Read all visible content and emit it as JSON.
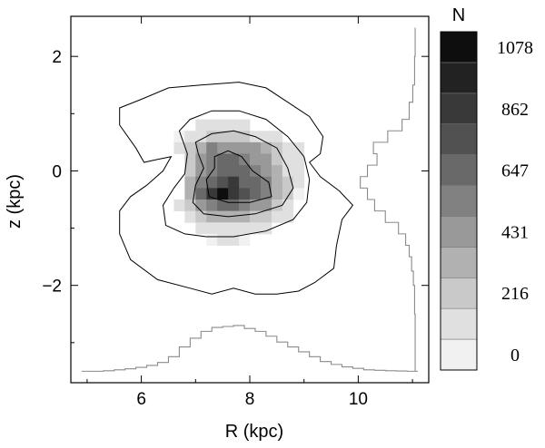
{
  "chart_data": {
    "type": "heatmap",
    "title": "",
    "xlabel": "R (kpc)",
    "ylabel": "z (kpc)",
    "xlim": [
      4.7,
      11.3
    ],
    "ylim": [
      -3.7,
      2.7
    ],
    "xticks": [
      6,
      8,
      10
    ],
    "xtick_labels": [
      "6",
      "8",
      "10"
    ],
    "yticks": [
      2,
      0,
      -2
    ],
    "ytick_labels": [
      "2",
      "0",
      "−2"
    ],
    "grid": false,
    "colorbar": {
      "title": "N",
      "min": 0,
      "max": 1078,
      "levels": 10,
      "tick_values": [
        1078,
        862,
        647,
        431,
        216,
        0
      ],
      "tick_labels": [
        "1078",
        "862",
        "647",
        "431",
        "216",
        "0"
      ],
      "colors": [
        "#f1f1f1",
        "#e0e0e0",
        "#c9c9c9",
        "#b1b1b1",
        "#999999",
        "#818181",
        "#696969",
        "#515151",
        "#393939",
        "#222222",
        "#0e0e0e"
      ]
    },
    "cells": [
      {
        "r": 7.1,
        "z": 0.8,
        "n": 60
      },
      {
        "r": 7.3,
        "z": 0.8,
        "n": 90
      },
      {
        "r": 7.5,
        "z": 0.8,
        "n": 90
      },
      {
        "r": 7.7,
        "z": 0.8,
        "n": 80
      },
      {
        "r": 7.9,
        "z": 0.8,
        "n": 60
      },
      {
        "r": 6.7,
        "z": 0.6,
        "n": 40
      },
      {
        "r": 6.9,
        "z": 0.6,
        "n": 100
      },
      {
        "r": 7.1,
        "z": 0.6,
        "n": 150
      },
      {
        "r": 7.3,
        "z": 0.6,
        "n": 250
      },
      {
        "r": 7.5,
        "z": 0.6,
        "n": 230
      },
      {
        "r": 7.7,
        "z": 0.6,
        "n": 220
      },
      {
        "r": 7.9,
        "z": 0.6,
        "n": 200
      },
      {
        "r": 8.1,
        "z": 0.6,
        "n": 150
      },
      {
        "r": 8.3,
        "z": 0.6,
        "n": 120
      },
      {
        "r": 8.5,
        "z": 0.6,
        "n": 70
      },
      {
        "r": 6.7,
        "z": 0.4,
        "n": 60
      },
      {
        "r": 6.9,
        "z": 0.4,
        "n": 180
      },
      {
        "r": 7.1,
        "z": 0.4,
        "n": 330
      },
      {
        "r": 7.3,
        "z": 0.4,
        "n": 520
      },
      {
        "r": 7.5,
        "z": 0.4,
        "n": 450
      },
      {
        "r": 7.7,
        "z": 0.4,
        "n": 420
      },
      {
        "r": 7.9,
        "z": 0.4,
        "n": 480
      },
      {
        "r": 8.1,
        "z": 0.4,
        "n": 380
      },
      {
        "r": 8.3,
        "z": 0.4,
        "n": 330
      },
      {
        "r": 8.5,
        "z": 0.4,
        "n": 200
      },
      {
        "r": 8.7,
        "z": 0.4,
        "n": 120
      },
      {
        "r": 8.9,
        "z": 0.4,
        "n": 60
      },
      {
        "r": 6.9,
        "z": 0.2,
        "n": 200
      },
      {
        "r": 7.1,
        "z": 0.2,
        "n": 380
      },
      {
        "r": 7.3,
        "z": 0.2,
        "n": 550
      },
      {
        "r": 7.5,
        "z": 0.2,
        "n": 640
      },
      {
        "r": 7.7,
        "z": 0.2,
        "n": 700
      },
      {
        "r": 7.9,
        "z": 0.2,
        "n": 560
      },
      {
        "r": 8.1,
        "z": 0.2,
        "n": 420
      },
      {
        "r": 8.3,
        "z": 0.2,
        "n": 380
      },
      {
        "r": 8.5,
        "z": 0.2,
        "n": 240
      },
      {
        "r": 8.7,
        "z": 0.2,
        "n": 130
      },
      {
        "r": 8.9,
        "z": 0.2,
        "n": 60
      },
      {
        "r": 6.9,
        "z": 0.0,
        "n": 250
      },
      {
        "r": 7.1,
        "z": 0.0,
        "n": 420
      },
      {
        "r": 7.3,
        "z": 0.0,
        "n": 520
      },
      {
        "r": 7.5,
        "z": 0.0,
        "n": 620
      },
      {
        "r": 7.7,
        "z": 0.0,
        "n": 640
      },
      {
        "r": 7.9,
        "z": 0.0,
        "n": 600
      },
      {
        "r": 8.1,
        "z": 0.0,
        "n": 520
      },
      {
        "r": 8.3,
        "z": 0.0,
        "n": 420
      },
      {
        "r": 8.5,
        "z": 0.0,
        "n": 330
      },
      {
        "r": 8.7,
        "z": 0.0,
        "n": 150
      },
      {
        "r": 8.9,
        "z": 0.0,
        "n": 60
      },
      {
        "r": 6.9,
        "z": -0.2,
        "n": 300
      },
      {
        "r": 7.1,
        "z": -0.2,
        "n": 520
      },
      {
        "r": 7.3,
        "z": -0.2,
        "n": 700
      },
      {
        "r": 7.5,
        "z": -0.2,
        "n": 780
      },
      {
        "r": 7.7,
        "z": -0.2,
        "n": 820
      },
      {
        "r": 7.9,
        "z": -0.2,
        "n": 700
      },
      {
        "r": 8.1,
        "z": -0.2,
        "n": 620
      },
      {
        "r": 8.3,
        "z": -0.2,
        "n": 500
      },
      {
        "r": 8.5,
        "z": -0.2,
        "n": 350
      },
      {
        "r": 8.7,
        "z": -0.2,
        "n": 180
      },
      {
        "r": 8.9,
        "z": -0.2,
        "n": 60
      },
      {
        "r": 6.9,
        "z": -0.4,
        "n": 280
      },
      {
        "r": 7.1,
        "z": -0.4,
        "n": 600
      },
      {
        "r": 7.3,
        "z": -0.4,
        "n": 860
      },
      {
        "r": 7.5,
        "z": -0.4,
        "n": 1078
      },
      {
        "r": 7.7,
        "z": -0.4,
        "n": 900
      },
      {
        "r": 7.9,
        "z": -0.4,
        "n": 750
      },
      {
        "r": 8.1,
        "z": -0.4,
        "n": 650
      },
      {
        "r": 8.3,
        "z": -0.4,
        "n": 520
      },
      {
        "r": 8.5,
        "z": -0.4,
        "n": 350
      },
      {
        "r": 8.7,
        "z": -0.4,
        "n": 170
      },
      {
        "r": 8.9,
        "z": -0.4,
        "n": 50
      },
      {
        "r": 6.7,
        "z": -0.6,
        "n": 80
      },
      {
        "r": 6.9,
        "z": -0.6,
        "n": 200
      },
      {
        "r": 7.1,
        "z": -0.6,
        "n": 380
      },
      {
        "r": 7.3,
        "z": -0.6,
        "n": 560
      },
      {
        "r": 7.5,
        "z": -0.6,
        "n": 620
      },
      {
        "r": 7.7,
        "z": -0.6,
        "n": 600
      },
      {
        "r": 7.9,
        "z": -0.6,
        "n": 540
      },
      {
        "r": 8.1,
        "z": -0.6,
        "n": 460
      },
      {
        "r": 8.3,
        "z": -0.6,
        "n": 380
      },
      {
        "r": 8.5,
        "z": -0.6,
        "n": 250
      },
      {
        "r": 8.7,
        "z": -0.6,
        "n": 120
      },
      {
        "r": 6.9,
        "z": -0.8,
        "n": 100
      },
      {
        "r": 7.1,
        "z": -0.8,
        "n": 200
      },
      {
        "r": 7.3,
        "z": -0.8,
        "n": 300
      },
      {
        "r": 7.5,
        "z": -0.8,
        "n": 330
      },
      {
        "r": 7.7,
        "z": -0.8,
        "n": 320
      },
      {
        "r": 7.9,
        "z": -0.8,
        "n": 300
      },
      {
        "r": 8.1,
        "z": -0.8,
        "n": 250
      },
      {
        "r": 8.3,
        "z": -0.8,
        "n": 200
      },
      {
        "r": 8.5,
        "z": -0.8,
        "n": 130
      },
      {
        "r": 8.7,
        "z": -0.8,
        "n": 60
      },
      {
        "r": 7.1,
        "z": -1.0,
        "n": 90
      },
      {
        "r": 7.3,
        "z": -1.0,
        "n": 130
      },
      {
        "r": 7.5,
        "z": -1.0,
        "n": 150
      },
      {
        "r": 7.7,
        "z": -1.0,
        "n": 150
      },
      {
        "r": 7.9,
        "z": -1.0,
        "n": 130
      },
      {
        "r": 8.1,
        "z": -1.0,
        "n": 110
      },
      {
        "r": 8.3,
        "z": -1.0,
        "n": 80
      },
      {
        "r": 7.3,
        "z": -1.2,
        "n": 50
      },
      {
        "r": 7.5,
        "z": -1.2,
        "n": 60
      },
      {
        "r": 7.7,
        "z": -1.2,
        "n": 60
      },
      {
        "r": 7.9,
        "z": -1.2,
        "n": 50
      }
    ],
    "contours": [
      {
        "name": "outer",
        "points": [
          [
            5.6,
            1.1
          ],
          [
            6.0,
            1.25
          ],
          [
            6.5,
            1.45
          ],
          [
            7.1,
            1.5
          ],
          [
            7.8,
            1.55
          ],
          [
            8.3,
            1.45
          ],
          [
            8.7,
            1.2
          ],
          [
            9.1,
            0.95
          ],
          [
            9.35,
            0.6
          ],
          [
            9.3,
            0.3
          ],
          [
            9.1,
            0.15
          ],
          [
            9.3,
            -0.1
          ],
          [
            9.65,
            -0.35
          ],
          [
            9.9,
            -0.6
          ],
          [
            9.7,
            -0.85
          ],
          [
            9.6,
            -1.3
          ],
          [
            9.55,
            -1.7
          ],
          [
            9.2,
            -1.95
          ],
          [
            8.9,
            -2.1
          ],
          [
            8.5,
            -2.15
          ],
          [
            8.1,
            -2.15
          ],
          [
            7.7,
            -2.05
          ],
          [
            7.3,
            -2.15
          ],
          [
            6.9,
            -2.05
          ],
          [
            6.3,
            -1.9
          ],
          [
            5.8,
            -1.55
          ],
          [
            5.6,
            -1.1
          ],
          [
            5.6,
            -0.7
          ],
          [
            5.8,
            -0.45
          ],
          [
            6.1,
            -0.25
          ],
          [
            6.4,
            0.0
          ],
          [
            6.55,
            0.25
          ],
          [
            6.3,
            0.2
          ],
          [
            6.05,
            0.15
          ],
          [
            5.9,
            0.4
          ],
          [
            5.6,
            0.8
          ]
        ]
      },
      {
        "name": "level-2",
        "points": [
          [
            6.7,
            0.7
          ],
          [
            6.9,
            0.9
          ],
          [
            7.3,
            1.05
          ],
          [
            7.8,
            1.05
          ],
          [
            8.3,
            0.9
          ],
          [
            8.7,
            0.6
          ],
          [
            9.0,
            0.25
          ],
          [
            9.1,
            -0.15
          ],
          [
            9.05,
            -0.55
          ],
          [
            8.8,
            -0.85
          ],
          [
            8.3,
            -1.05
          ],
          [
            7.7,
            -1.15
          ],
          [
            7.2,
            -1.15
          ],
          [
            6.8,
            -1.1
          ],
          [
            6.45,
            -0.95
          ],
          [
            6.4,
            -0.6
          ],
          [
            6.6,
            -0.3
          ],
          [
            6.8,
            -0.05
          ],
          [
            6.85,
            0.3
          ]
        ]
      },
      {
        "name": "level-3",
        "points": [
          [
            7.0,
            0.5
          ],
          [
            7.3,
            0.65
          ],
          [
            7.7,
            0.7
          ],
          [
            8.1,
            0.6
          ],
          [
            8.5,
            0.4
          ],
          [
            8.7,
            0.05
          ],
          [
            8.8,
            -0.3
          ],
          [
            8.6,
            -0.6
          ],
          [
            8.1,
            -0.75
          ],
          [
            7.6,
            -0.8
          ],
          [
            7.15,
            -0.75
          ],
          [
            6.95,
            -0.55
          ],
          [
            7.0,
            -0.25
          ],
          [
            7.15,
            0.05
          ],
          [
            7.05,
            0.3
          ]
        ]
      },
      {
        "name": "inner",
        "points": [
          [
            7.35,
            0.25
          ],
          [
            7.6,
            0.35
          ],
          [
            7.85,
            0.25
          ],
          [
            8.05,
            0.0
          ],
          [
            8.35,
            -0.2
          ],
          [
            8.4,
            -0.45
          ],
          [
            8.0,
            -0.55
          ],
          [
            7.6,
            -0.55
          ],
          [
            7.25,
            -0.45
          ],
          [
            7.2,
            -0.15
          ],
          [
            7.35,
            0.05
          ]
        ]
      }
    ],
    "histogram_R": {
      "bin_edges": [
        4.9,
        5.3,
        5.5,
        5.7,
        5.9,
        6.1,
        6.3,
        6.5,
        6.7,
        6.9,
        7.1,
        7.3,
        7.5,
        7.7,
        7.9,
        8.1,
        8.3,
        8.5,
        8.7,
        8.9,
        9.1,
        9.3,
        9.5,
        9.7,
        9.9,
        10.1,
        10.3,
        10.5,
        10.7,
        10.9,
        11.1
      ],
      "values": [
        0.0,
        0.01,
        0.03,
        0.05,
        0.08,
        0.12,
        0.18,
        0.3,
        0.5,
        0.68,
        0.82,
        0.9,
        0.92,
        0.94,
        0.88,
        0.82,
        0.72,
        0.6,
        0.5,
        0.4,
        0.3,
        0.2,
        0.14,
        0.09,
        0.06,
        0.03,
        0.02,
        0.01,
        0.005,
        0.0
      ]
    },
    "histogram_z": {
      "bin_edges": [
        -3.5,
        -2.5,
        -2.0,
        -1.75,
        -1.5,
        -1.3,
        -1.1,
        -0.9,
        -0.7,
        -0.5,
        -0.3,
        -0.1,
        0.1,
        0.3,
        0.5,
        0.7,
        0.9,
        1.2,
        1.5,
        2.0,
        2.5
      ],
      "values": [
        0.0,
        0.01,
        0.03,
        0.06,
        0.1,
        0.16,
        0.28,
        0.5,
        0.68,
        0.8,
        0.92,
        0.8,
        0.64,
        0.7,
        0.46,
        0.22,
        0.1,
        0.04,
        0.01,
        0.0
      ]
    }
  }
}
